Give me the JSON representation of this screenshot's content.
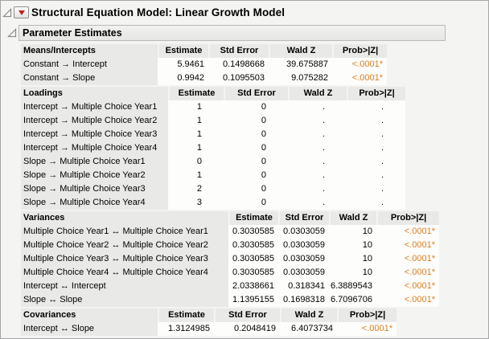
{
  "window": {
    "title": "Structural Equation Model: Linear Growth Model",
    "section_title": "Parameter Estimates"
  },
  "icons": {
    "red_triangle_menu": "red filled down-triangle",
    "disclosure_open": "gray outlined corner triangle"
  },
  "colors": {
    "significant_value": "#dd7c1e",
    "header_bg": "#e9e9e7",
    "red_triangle": "#c2201a"
  },
  "tables": [
    {
      "id": "means",
      "name": "Means/Intercepts",
      "columns": [
        "Estimate",
        "Std Error",
        "Wald Z",
        "Prob>|Z|"
      ],
      "rows": [
        {
          "label": "Constant → Intercept",
          "values": [
            "5.9461",
            "0.1498668",
            "39.675887",
            "<.0001*"
          ]
        },
        {
          "label": "Constant → Slope",
          "values": [
            "0.9942",
            "0.1095503",
            "9.075282",
            "<.0001*"
          ]
        }
      ]
    },
    {
      "id": "loadings",
      "name": "Loadings",
      "columns": [
        "Estimate",
        "Std Error",
        "Wald Z",
        "Prob>|Z|"
      ],
      "rows": [
        {
          "label": "Intercept → Multiple Choice Year1",
          "values": [
            "1",
            "0",
            ".",
            "."
          ]
        },
        {
          "label": "Intercept → Multiple Choice Year2",
          "values": [
            "1",
            "0",
            ".",
            "."
          ]
        },
        {
          "label": "Intercept → Multiple Choice Year3",
          "values": [
            "1",
            "0",
            ".",
            "."
          ]
        },
        {
          "label": "Intercept → Multiple Choice Year4",
          "values": [
            "1",
            "0",
            ".",
            "."
          ]
        },
        {
          "label": "Slope → Multiple Choice Year1",
          "values": [
            "0",
            "0",
            ".",
            "."
          ]
        },
        {
          "label": "Slope → Multiple Choice Year2",
          "values": [
            "1",
            "0",
            ".",
            "."
          ]
        },
        {
          "label": "Slope → Multiple Choice Year3",
          "values": [
            "2",
            "0",
            ".",
            "."
          ]
        },
        {
          "label": "Slope → Multiple Choice Year4",
          "values": [
            "3",
            "0",
            ".",
            "."
          ]
        }
      ]
    },
    {
      "id": "variances",
      "name": "Variances",
      "columns": [
        "Estimate",
        "Std Error",
        "Wald Z",
        "Prob>|Z|"
      ],
      "rows": [
        {
          "label": "Multiple Choice Year1 ↔ Multiple Choice Year1",
          "values": [
            "0.3030585",
            "0.0303059",
            "10",
            "<.0001*"
          ]
        },
        {
          "label": "Multiple Choice Year2 ↔ Multiple Choice Year2",
          "values": [
            "0.3030585",
            "0.0303059",
            "10",
            "<.0001*"
          ]
        },
        {
          "label": "Multiple Choice Year3 ↔ Multiple Choice Year3",
          "values": [
            "0.3030585",
            "0.0303059",
            "10",
            "<.0001*"
          ]
        },
        {
          "label": "Multiple Choice Year4 ↔ Multiple Choice Year4",
          "values": [
            "0.3030585",
            "0.0303059",
            "10",
            "<.0001*"
          ]
        },
        {
          "label": "Intercept ↔ Intercept",
          "values": [
            "2.0338661",
            "0.318341",
            "6.3889543",
            "<.0001*"
          ]
        },
        {
          "label": "Slope ↔ Slope",
          "values": [
            "1.1395155",
            "0.1698318",
            "6.7096706",
            "<.0001*"
          ]
        }
      ]
    },
    {
      "id": "covariances",
      "name": "Covariances",
      "columns": [
        "Estimate",
        "Std Error",
        "Wald Z",
        "Prob>|Z|"
      ],
      "rows": [
        {
          "label": "Intercept ↔ Slope",
          "values": [
            "1.3124985",
            "0.2048419",
            "6.4073734",
            "<.0001*"
          ]
        }
      ]
    }
  ]
}
